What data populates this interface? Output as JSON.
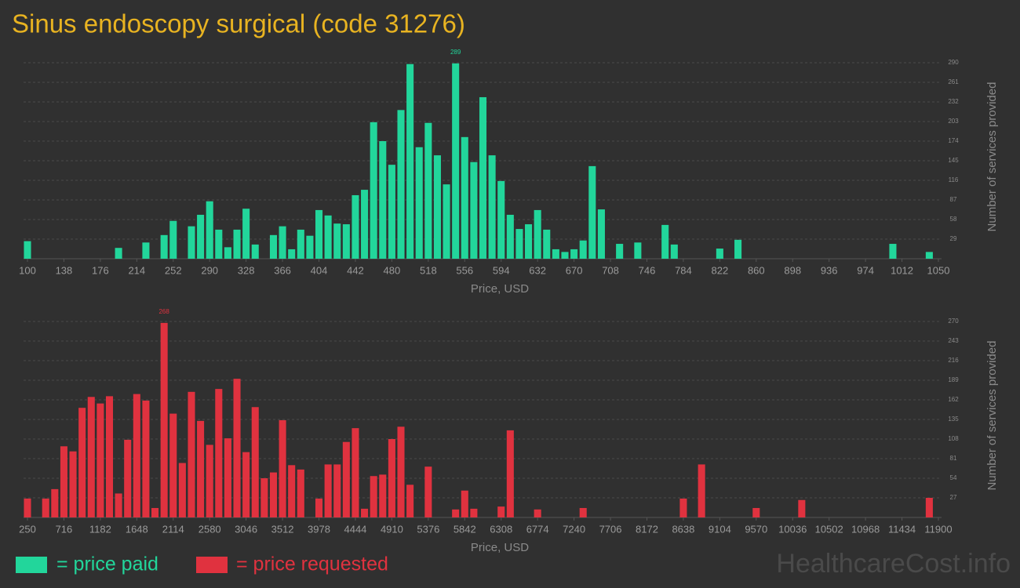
{
  "title": "Sinus endoscopy surgical (code 31276)",
  "legend": [
    {
      "text": "= price paid",
      "color": "#22d69b"
    },
    {
      "text": "= price requested",
      "color": "#e0323f"
    }
  ],
  "watermark": "HealthcareCost.info",
  "chart_data": [
    {
      "type": "histogram",
      "color": "#22d69b",
      "grid": true,
      "xlabel": "Price, USD",
      "ylabel": "Number of services provided",
      "bins": [
        100,
        109.5,
        119,
        128.5,
        138,
        147.5,
        157,
        166.5,
        176,
        185.5,
        195,
        204.5,
        214,
        223.5,
        233,
        242.5,
        252,
        261.5,
        271,
        280.5,
        290,
        299.5,
        309,
        318.5,
        328,
        337.5,
        347,
        356.5,
        366,
        375.5,
        385,
        394.5,
        404,
        413.5,
        423,
        432.5,
        442,
        451.5,
        461,
        470.5,
        480,
        489.5,
        499,
        508.5,
        518,
        527.5,
        537,
        546.5,
        556,
        565.5,
        575,
        584.5,
        594,
        603.5,
        613,
        622.5,
        632,
        641.5,
        651,
        660.5,
        670,
        679.5,
        689,
        698.5,
        708,
        717.5,
        727,
        736.5,
        746,
        755.5,
        765,
        774.5,
        784,
        793.5,
        803,
        812.5,
        822,
        831.5,
        841,
        850.5,
        860,
        869.5,
        879,
        888.5,
        898,
        907.5,
        917,
        926.5,
        936,
        945.5,
        955,
        964.5,
        974,
        983.5,
        993,
        1002.5,
        1012,
        1021.5,
        1031,
        1040.5,
        1050
      ],
      "values": [
        26,
        0,
        0,
        0,
        0,
        0,
        0,
        0,
        0,
        0,
        16,
        0,
        0,
        24,
        0,
        35,
        56,
        0,
        48,
        65,
        85,
        43,
        17,
        43,
        74,
        21,
        0,
        35,
        48,
        14,
        43,
        34,
        72,
        64,
        52,
        51,
        94,
        102,
        202,
        174,
        139,
        220,
        288,
        165,
        201,
        153,
        110,
        289,
        180,
        143,
        239,
        153,
        115,
        65,
        44,
        51,
        72,
        43,
        14,
        10,
        14,
        27,
        137,
        73,
        0,
        22,
        0,
        24,
        0,
        0,
        50,
        21,
        0,
        0,
        0,
        0,
        15,
        0,
        28,
        0,
        0,
        0,
        0,
        0,
        0,
        0,
        0,
        0,
        0,
        0,
        0,
        0,
        0,
        0,
        0,
        22,
        0,
        0,
        0,
        10
      ],
      "annotations": [
        {
          "text": "289"
        }
      ],
      "xlim": [
        100,
        1050
      ],
      "xticks": [
        100,
        138,
        176,
        214,
        252,
        290,
        328,
        366,
        404,
        442,
        480,
        518,
        556,
        594,
        632,
        670,
        708,
        746,
        784,
        822,
        860,
        898,
        936,
        974,
        1012,
        1050
      ],
      "ylim": [
        0,
        290
      ],
      "yticks": [
        29,
        58,
        87,
        116,
        145,
        174,
        203,
        232,
        261,
        290
      ]
    },
    {
      "type": "histogram",
      "color": "#e0323f",
      "grid": true,
      "xlabel": "Price, USD",
      "ylabel": "Number of services provided",
      "bins": [
        250,
        366.5,
        483,
        599.5,
        716,
        832.5,
        949,
        1065.5,
        1182,
        1298.5,
        1415,
        1531.5,
        1648,
        1764.5,
        1881,
        1997.5,
        2114,
        2230.5,
        2347,
        2463.5,
        2580,
        2696.5,
        2813,
        2929.5,
        3046,
        3162.5,
        3279,
        3395.5,
        3512,
        3628.5,
        3745,
        3861.5,
        3978,
        4094.5,
        4211,
        4327.5,
        4444,
        4560.5,
        4677,
        4793.5,
        4910,
        5026.5,
        5143,
        5259.5,
        5376,
        5492.5,
        5609,
        5725.5,
        5842,
        5958.5,
        6075,
        6191.5,
        6308,
        6424.5,
        6541,
        6657.5,
        6774,
        6890.5,
        7007,
        7123.5,
        7240,
        7356.5,
        7473,
        7589.5,
        7706,
        7822.5,
        7939,
        8055.5,
        8172,
        8288.5,
        8405,
        8521.5,
        8638,
        8754.5,
        8871,
        8987.5,
        9104,
        9220.5,
        9337,
        9453.5,
        9570,
        9686.5,
        9803,
        9919.5,
        10036,
        10152.5,
        10269,
        10385.5,
        10502,
        10618.5,
        10735,
        10851.5,
        10968,
        11084.5,
        11201,
        11317.5,
        11434,
        11550.5,
        11667,
        11783.5,
        11900
      ],
      "values": [
        26,
        0,
        26,
        39,
        98,
        91,
        151,
        166,
        157,
        167,
        33,
        107,
        170,
        161,
        13,
        268,
        143,
        75,
        173,
        133,
        100,
        177,
        109,
        191,
        90,
        152,
        54,
        62,
        134,
        72,
        66,
        0,
        26,
        73,
        73,
        104,
        123,
        12,
        57,
        59,
        108,
        125,
        45,
        0,
        70,
        0,
        0,
        11,
        37,
        12,
        0,
        0,
        15,
        120,
        0,
        0,
        11,
        0,
        0,
        0,
        0,
        13,
        0,
        0,
        0,
        0,
        0,
        0,
        0,
        0,
        0,
        0,
        26,
        0,
        73,
        0,
        0,
        0,
        0,
        0,
        13,
        0,
        0,
        0,
        0,
        24,
        0,
        0,
        0,
        0,
        0,
        0,
        0,
        0,
        0,
        0,
        0,
        0,
        0,
        27
      ],
      "annotations": [
        {
          "text": "268"
        }
      ],
      "xlim": [
        250,
        11900
      ],
      "xticks": [
        250,
        716,
        1182,
        1648,
        2114,
        2580,
        3046,
        3512,
        3978,
        4444,
        4910,
        5376,
        5842,
        6308,
        6774,
        7240,
        7706,
        8172,
        8638,
        9104,
        9570,
        10036,
        10502,
        10968,
        11434,
        11900
      ],
      "ylim": [
        0,
        270
      ],
      "yticks": [
        27,
        54,
        81,
        108,
        135,
        162,
        189,
        216,
        243,
        270
      ]
    }
  ]
}
